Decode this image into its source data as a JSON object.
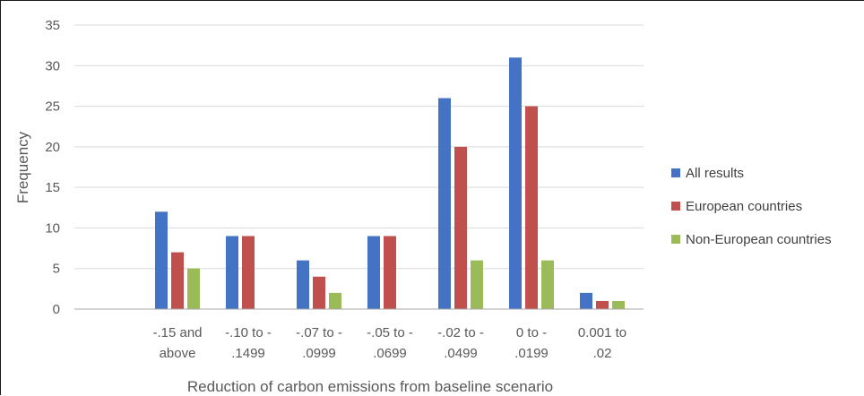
{
  "chart_data": {
    "type": "bar",
    "categories": [
      [
        "-.15 and",
        "above"
      ],
      [
        "-.10 to -",
        ".1499"
      ],
      [
        "-.07 to -",
        ".0999"
      ],
      [
        "-.05 to -",
        ".0699"
      ],
      [
        "-.02 to -",
        ".0499"
      ],
      [
        "0 to -",
        ".0199"
      ],
      [
        "0.001 to",
        ".02"
      ]
    ],
    "series": [
      {
        "name": "All results",
        "color": "#4472C4",
        "values": [
          12,
          9,
          6,
          9,
          26,
          31,
          2
        ]
      },
      {
        "name": "European countries",
        "color": "#C0504D",
        "values": [
          7,
          9,
          4,
          9,
          20,
          25,
          1
        ]
      },
      {
        "name": "Non-European countries",
        "color": "#9BBB59",
        "values": [
          5,
          0,
          2,
          0,
          6,
          6,
          1
        ]
      }
    ],
    "title": "",
    "xlabel": "Reduction of carbon emissions from baseline scenario",
    "ylabel": "Frequency",
    "ylim": [
      0,
      35
    ],
    "yticks": [
      0,
      5,
      10,
      15,
      20,
      25,
      30,
      35
    ],
    "grid": true,
    "legend_position": "right"
  },
  "colors": {
    "grid": "#D9D9D9",
    "axis": "#A6A6A6",
    "text": "#595959"
  }
}
